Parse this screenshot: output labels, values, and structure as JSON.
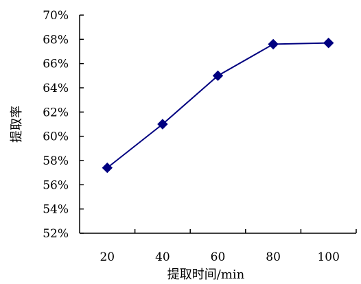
{
  "chart_data": {
    "type": "line",
    "title": "",
    "xlabel": "提取时间/min",
    "ylabel": "提取率",
    "x": [
      20,
      40,
      60,
      80,
      100
    ],
    "x_tick_labels": [
      "20",
      "40",
      "60",
      "80",
      "100"
    ],
    "y_tick_labels": [
      "52%",
      "54%",
      "56%",
      "58%",
      "60%",
      "62%",
      "64%",
      "66%",
      "68%",
      "70%"
    ],
    "ylim": [
      52,
      70
    ],
    "y_unit": "%",
    "grid": false,
    "legend": "none",
    "series": [
      {
        "values": [
          57.4,
          61.0,
          65.0,
          67.6,
          67.7
        ],
        "color": "#000080",
        "marker": "diamond"
      }
    ]
  }
}
